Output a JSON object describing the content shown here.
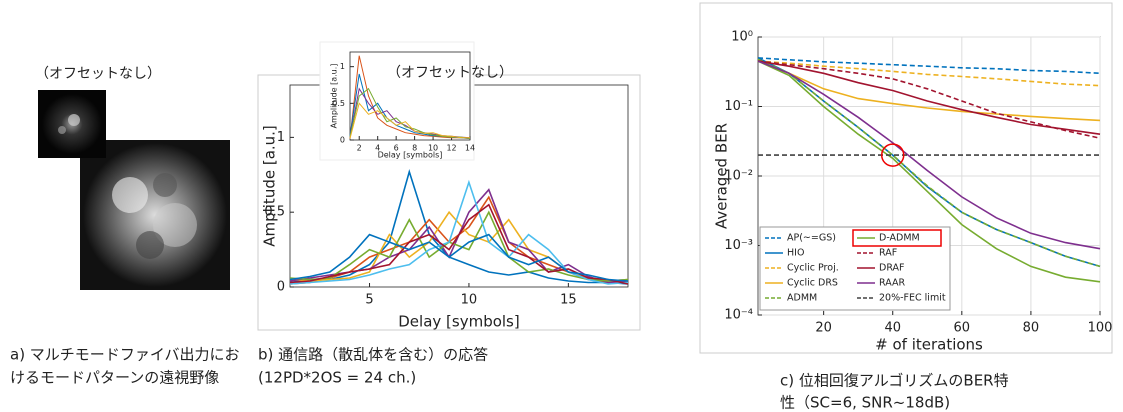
{
  "image_label": "（オフセットなし）",
  "captions": {
    "a": [
      "a) マルチモードファイバ出力にお",
      "けるモードパターンの遠視野像"
    ],
    "b": [
      "b) 通信路（散乱体を含む）の応答",
      "(12PD*2OS = 24 ch.)"
    ],
    "c": [
      "c) 位相回復アルゴリズムのBER特",
      "性（SC=6, SNR~18dB)"
    ]
  },
  "chart_data": [
    {
      "type": "line",
      "x_label": "Delay [symbols]",
      "y_label": "Amplitude [a.u.]",
      "x": [
        1,
        2,
        3,
        4,
        5,
        6,
        7,
        8,
        9,
        10,
        11,
        12,
        13,
        14,
        15,
        16,
        17,
        18
      ],
      "xlim": [
        1,
        18
      ],
      "xticks": [
        5,
        10,
        15
      ],
      "ylim": [
        0,
        1.35
      ],
      "yticks": [
        0,
        0.5,
        1
      ],
      "series": [
        {
          "color": "#0072bd",
          "values": [
            0.03,
            0.05,
            0.05,
            0.08,
            0.15,
            0.3,
            0.77,
            0.35,
            0.2,
            0.15,
            0.1,
            0.08,
            0.1,
            0.06,
            0.04,
            0.03,
            0.03,
            0.02
          ]
        },
        {
          "color": "#d95319",
          "values": [
            0.02,
            0.03,
            0.06,
            0.1,
            0.2,
            0.25,
            0.3,
            0.45,
            0.3,
            0.4,
            0.6,
            0.3,
            0.2,
            0.15,
            0.1,
            0.05,
            0.03,
            0.03
          ]
        },
        {
          "color": "#edb120",
          "values": [
            0.05,
            0.04,
            0.05,
            0.06,
            0.1,
            0.35,
            0.2,
            0.3,
            0.5,
            0.35,
            0.3,
            0.45,
            0.25,
            0.2,
            0.1,
            0.06,
            0.04,
            0.05
          ]
        },
        {
          "color": "#7e2f8e",
          "values": [
            0.04,
            0.06,
            0.08,
            0.1,
            0.12,
            0.2,
            0.25,
            0.4,
            0.2,
            0.5,
            0.65,
            0.3,
            0.25,
            0.1,
            0.15,
            0.07,
            0.03,
            0.04
          ]
        },
        {
          "color": "#77ac30",
          "values": [
            0.06,
            0.05,
            0.06,
            0.15,
            0.25,
            0.2,
            0.45,
            0.2,
            0.3,
            0.25,
            0.5,
            0.2,
            0.1,
            0.12,
            0.08,
            0.05,
            0.04,
            0.05
          ]
        },
        {
          "color": "#4dbeee",
          "values": [
            0.02,
            0.03,
            0.04,
            0.05,
            0.08,
            0.12,
            0.15,
            0.25,
            0.3,
            0.7,
            0.3,
            0.2,
            0.35,
            0.25,
            0.1,
            0.05,
            0.02,
            0.03
          ]
        },
        {
          "color": "#a2142f",
          "values": [
            0.03,
            0.04,
            0.07,
            0.1,
            0.12,
            0.15,
            0.3,
            0.35,
            0.25,
            0.45,
            0.55,
            0.25,
            0.2,
            0.1,
            0.12,
            0.06,
            0.05,
            0.02
          ]
        },
        {
          "color": "#0072bd",
          "values": [
            0.05,
            0.07,
            0.1,
            0.2,
            0.35,
            0.3,
            0.25,
            0.3,
            0.2,
            0.3,
            0.35,
            0.2,
            0.15,
            0.2,
            0.1,
            0.08,
            0.05,
            0.04
          ]
        }
      ]
    },
    {
      "type": "line",
      "title": "（オフセットなし）",
      "x_label": "Delay [symbols]",
      "y_label": "Amplitude [a.u.]",
      "x": [
        1,
        2,
        3,
        4,
        5,
        6,
        7,
        8,
        9,
        10,
        11,
        12,
        13,
        14
      ],
      "xlim": [
        1,
        14
      ],
      "xticks": [
        2,
        4,
        6,
        8,
        10,
        12,
        14
      ],
      "ylim": [
        0,
        1.2
      ],
      "yticks": [
        0,
        0.5,
        1
      ],
      "series": [
        {
          "color": "#d95319",
          "values": [
            0.02,
            1.15,
            0.6,
            0.3,
            0.2,
            0.15,
            0.1,
            0.08,
            0.06,
            0.05,
            0.04,
            0.03,
            0.03,
            0.02
          ]
        },
        {
          "color": "#0072bd",
          "values": [
            0.05,
            0.9,
            0.4,
            0.5,
            0.3,
            0.2,
            0.15,
            0.1,
            0.08,
            0.06,
            0.05,
            0.04,
            0.03,
            0.02
          ]
        },
        {
          "color": "#7e2f8e",
          "values": [
            0.03,
            0.7,
            0.5,
            0.35,
            0.4,
            0.25,
            0.2,
            0.12,
            0.1,
            0.08,
            0.06,
            0.05,
            0.04,
            0.03
          ]
        },
        {
          "color": "#77ac30",
          "values": [
            0.04,
            0.6,
            0.7,
            0.45,
            0.25,
            0.3,
            0.18,
            0.15,
            0.1,
            0.07,
            0.05,
            0.04,
            0.04,
            0.02
          ]
        },
        {
          "color": "#edb120",
          "values": [
            0.02,
            0.5,
            0.35,
            0.4,
            0.3,
            0.2,
            0.25,
            0.12,
            0.09,
            0.1,
            0.06,
            0.05,
            0.03,
            0.03
          ]
        }
      ]
    },
    {
      "type": "line",
      "x_label": "# of iterations",
      "y_label": "Averaged BER",
      "x": [
        1,
        10,
        20,
        30,
        40,
        50,
        60,
        70,
        80,
        90,
        100
      ],
      "xlim": [
        1,
        100
      ],
      "xticks": [
        20,
        40,
        60,
        80,
        100
      ],
      "yscale": "log",
      "ylim": [
        0.0001,
        1
      ],
      "yticks": [
        {
          "value": 0.0001,
          "label": "10⁻⁴"
        },
        {
          "value": 0.001,
          "label": "10⁻³"
        },
        {
          "value": 0.01,
          "label": "10⁻²"
        },
        {
          "value": 0.1,
          "label": "10⁻¹"
        },
        {
          "value": 1,
          "label": "10⁰"
        }
      ],
      "grid": true,
      "legend": "lower left",
      "series": [
        {
          "name": "AP(~=GS)",
          "color": "#0072bd",
          "dash": true,
          "values": [
            0.5,
            0.47,
            0.44,
            0.42,
            0.4,
            0.38,
            0.36,
            0.35,
            0.33,
            0.32,
            0.3
          ]
        },
        {
          "name": "HIO",
          "color": "#0072bd",
          "dash": false,
          "values": [
            0.5,
            0.3,
            0.12,
            0.05,
            0.02,
            0.007,
            0.003,
            0.0017,
            0.0011,
            0.0007,
            0.0005
          ]
        },
        {
          "name": "Cyclic Proj.",
          "color": "#edb120",
          "dash": true,
          "values": [
            0.45,
            0.42,
            0.38,
            0.35,
            0.32,
            0.29,
            0.27,
            0.25,
            0.23,
            0.21,
            0.2
          ]
        },
        {
          "name": "Cyclic DRS",
          "color": "#edb120",
          "dash": false,
          "values": [
            0.45,
            0.3,
            0.18,
            0.13,
            0.11,
            0.095,
            0.085,
            0.078,
            0.072,
            0.067,
            0.063
          ]
        },
        {
          "name": "ADMM",
          "color": "#77ac30",
          "dash": true,
          "values": [
            0.48,
            0.3,
            0.12,
            0.05,
            0.02,
            0.0072,
            0.003,
            0.0017,
            0.0011,
            0.0007,
            0.0005
          ]
        },
        {
          "name": "D-ADMM",
          "color": "#77ac30",
          "dash": false,
          "values": [
            0.45,
            0.28,
            0.1,
            0.04,
            0.018,
            0.006,
            0.002,
            0.0009,
            0.0005,
            0.00035,
            0.0003
          ]
        },
        {
          "name": "RAF",
          "color": "#a2142f",
          "dash": true,
          "values": [
            0.45,
            0.4,
            0.35,
            0.3,
            0.25,
            0.18,
            0.12,
            0.08,
            0.06,
            0.045,
            0.035
          ]
        },
        {
          "name": "DRAF",
          "color": "#a2142f",
          "dash": false,
          "values": [
            0.45,
            0.38,
            0.3,
            0.22,
            0.17,
            0.12,
            0.09,
            0.07,
            0.055,
            0.047,
            0.04
          ]
        },
        {
          "name": "RAAR",
          "color": "#7e2f8e",
          "dash": false,
          "values": [
            0.45,
            0.3,
            0.15,
            0.07,
            0.03,
            0.012,
            0.005,
            0.0025,
            0.0015,
            0.0011,
            0.0009
          ]
        },
        {
          "name": "20%-FEC limit",
          "color": "#404040",
          "dash": true,
          "values": [
            0.02,
            0.02,
            0.02,
            0.02,
            0.02,
            0.02,
            0.02,
            0.02,
            0.02,
            0.02,
            0.02
          ]
        }
      ]
    }
  ]
}
